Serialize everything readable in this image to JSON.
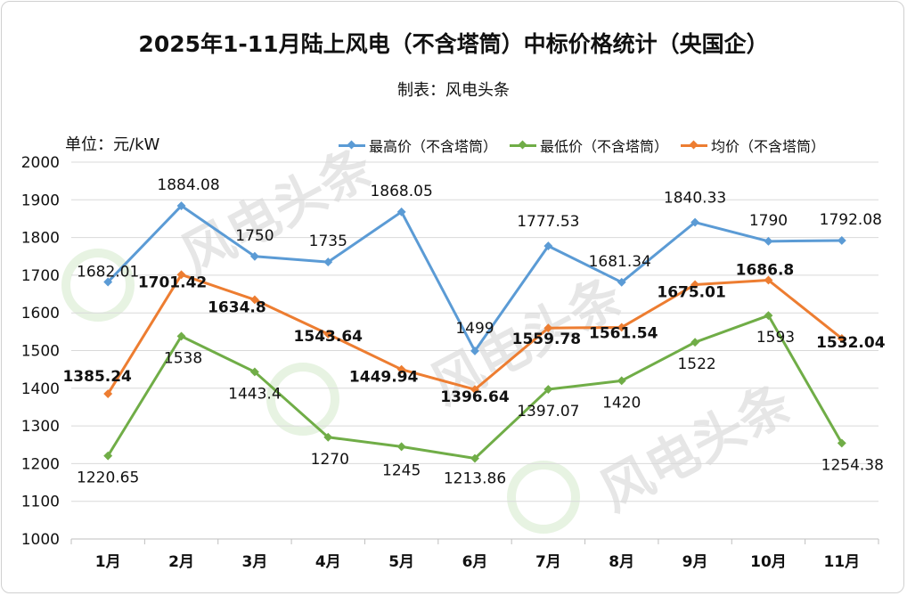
{
  "header": {
    "title": "2025年1-11月陆上风电（不含塔筒）中标价格统计（央国企）",
    "subtitle": "制表：风电头条",
    "unit": "单位：元/kW"
  },
  "watermark": "风电头条",
  "colors": {
    "max": "#5b9bd5",
    "min": "#70ad47",
    "avg": "#ed7d31",
    "grid": "#d9d9d9",
    "text": "#111111"
  },
  "chart_data": {
    "type": "line",
    "categories": [
      "1月",
      "2月",
      "3月",
      "4月",
      "5月",
      "6月",
      "7月",
      "8月",
      "9月",
      "10月",
      "11月"
    ],
    "ylim": [
      1000,
      2000
    ],
    "yticks": [
      1000,
      1100,
      1200,
      1300,
      1400,
      1500,
      1600,
      1700,
      1800,
      1900,
      2000
    ],
    "grid": true,
    "legend_position": "top-right",
    "series": [
      {
        "key": "max",
        "name": "最高价（不含塔筒）",
        "values": [
          1682.01,
          1884.08,
          1750,
          1735,
          1868.05,
          1499,
          1777.53,
          1681.34,
          1840.33,
          1790,
          1792.08
        ],
        "labels": [
          "1682.01",
          "1884.08",
          "1750",
          "1735",
          "1868.05",
          "1499",
          "1777.53",
          "1681.34",
          "1840.33",
          "1790",
          "1792.08"
        ]
      },
      {
        "key": "min",
        "name": "最低价（不含塔筒）",
        "values": [
          1220.65,
          1538,
          1443.4,
          1270,
          1245,
          1213.86,
          1397.07,
          1420,
          1522,
          1593,
          1254.38
        ],
        "labels": [
          "1220.65",
          "1538",
          "1443.4",
          "1270",
          "1245",
          "1213.86",
          "1397.07",
          "1420",
          "1522",
          "1593",
          "1254.38"
        ]
      },
      {
        "key": "avg",
        "name": "均价（不含塔筒）",
        "values": [
          1385.24,
          1701.42,
          1634.8,
          1543.64,
          1449.94,
          1396.64,
          1559.78,
          1561.54,
          1675.01,
          1686.8,
          1532.04
        ],
        "labels": [
          "1385.24",
          "1701.42",
          "1634.8",
          "1543.64",
          "1449.94",
          "1396.64",
          "1559.78",
          "1561.54",
          "1675.01",
          "1686.8",
          "1532.04"
        ]
      }
    ]
  }
}
